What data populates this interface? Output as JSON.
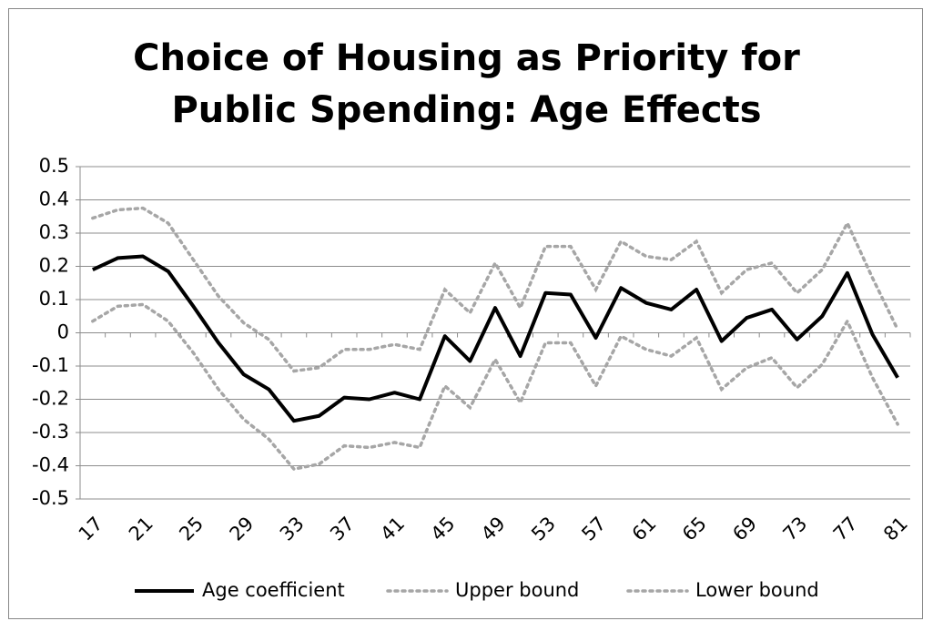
{
  "chart_data": {
    "type": "line",
    "title": "Choice of Housing as Priority for Public Spending: Age Effects",
    "categories": [
      "17",
      null,
      "21",
      null,
      "25",
      null,
      "29",
      null,
      "33",
      null,
      "37",
      null,
      "41",
      null,
      "45",
      null,
      "49",
      null,
      "53",
      null,
      "57",
      null,
      "61",
      null,
      "65",
      null,
      "69",
      null,
      "73",
      null,
      "77",
      null,
      "81"
    ],
    "series": [
      {
        "name": "Age coefficient",
        "color": "#000000",
        "style": "solid",
        "values": [
          0.19,
          0.225,
          0.23,
          0.185,
          0.08,
          -0.03,
          -0.125,
          -0.17,
          -0.265,
          -0.25,
          -0.195,
          -0.2,
          -0.18,
          -0.2,
          -0.01,
          -0.085,
          0.075,
          -0.07,
          0.12,
          0.115,
          -0.015,
          0.135,
          0.09,
          0.07,
          0.13,
          -0.025,
          0.045,
          0.07,
          -0.02,
          0.05,
          0.18,
          -0.005,
          -0.135
        ]
      },
      {
        "name": "Upper bound",
        "color": "#a6a6a6",
        "style": "dotted",
        "values": [
          0.345,
          0.37,
          0.375,
          0.33,
          0.22,
          0.11,
          0.03,
          -0.02,
          -0.115,
          -0.105,
          -0.05,
          -0.05,
          -0.035,
          -0.05,
          0.13,
          0.06,
          0.21,
          0.075,
          0.26,
          0.26,
          0.13,
          0.275,
          0.23,
          0.22,
          0.275,
          0.12,
          0.19,
          0.21,
          0.12,
          0.19,
          0.33,
          0.165,
          0.01
        ]
      },
      {
        "name": "Lower bound",
        "color": "#a6a6a6",
        "style": "dotted",
        "values": [
          0.035,
          0.08,
          0.085,
          0.035,
          -0.06,
          -0.17,
          -0.26,
          -0.32,
          -0.41,
          -0.395,
          -0.34,
          -0.345,
          -0.33,
          -0.345,
          -0.16,
          -0.225,
          -0.08,
          -0.21,
          -0.03,
          -0.03,
          -0.16,
          -0.01,
          -0.05,
          -0.07,
          -0.015,
          -0.17,
          -0.105,
          -0.075,
          -0.165,
          -0.095,
          0.035,
          -0.135,
          -0.275
        ]
      }
    ],
    "ylim": [
      -0.5,
      0.5
    ],
    "yticks": [
      -0.5,
      -0.4,
      -0.3,
      -0.2,
      -0.1,
      0,
      0.1,
      0.2,
      0.3,
      0.4,
      0.5
    ],
    "grid": true,
    "legend": "bottom"
  }
}
